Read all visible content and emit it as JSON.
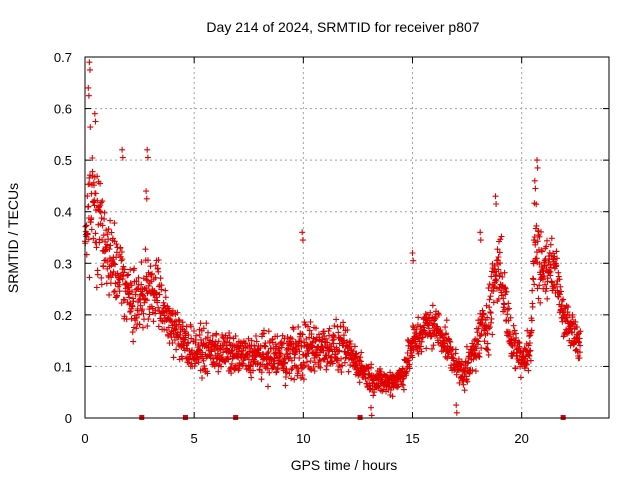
{
  "chart_data": {
    "type": "scatter",
    "title": "Day 214 of 2024, SRMTID for receiver p807",
    "xlabel": "GPS time / hours",
    "ylabel": "SRMTID / TECUs",
    "xlim": [
      0,
      24
    ],
    "ylim": [
      0,
      0.7
    ],
    "x_ticks": [
      0,
      5,
      10,
      15,
      20
    ],
    "x_tick_labels": [
      "0",
      "5",
      "10",
      "15",
      "20"
    ],
    "y_ticks": [
      0,
      0.1,
      0.2,
      0.3,
      0.4,
      0.5,
      0.6,
      0.7
    ],
    "y_tick_labels": [
      "0",
      "0.1",
      "0.2",
      "0.3",
      "0.4",
      "0.5",
      "0.6",
      "0.7"
    ],
    "grid": true,
    "marker": "+",
    "color": "#e00000",
    "gap_markers_x": [
      2.6,
      4.6,
      6.9,
      12.6,
      21.9
    ],
    "envelope": {
      "description_units": "hour, typical SRMTID level, scatter half-width",
      "x": [
        0.0,
        0.3,
        0.6,
        1.0,
        1.5,
        2.0,
        2.5,
        3.0,
        3.5,
        4.0,
        4.5,
        5.0,
        6.0,
        7.0,
        8.0,
        9.0,
        10.0,
        11.0,
        12.0,
        12.6,
        13.0,
        13.5,
        14.0,
        14.5,
        15.0,
        15.5,
        16.0,
        16.5,
        17.0,
        17.5,
        18.0,
        18.5,
        18.8,
        19.0,
        19.5,
        20.0,
        20.4,
        20.6,
        21.0,
        21.5,
        22.0,
        22.7
      ],
      "center": [
        0.35,
        0.42,
        0.38,
        0.32,
        0.28,
        0.24,
        0.22,
        0.26,
        0.22,
        0.18,
        0.15,
        0.13,
        0.13,
        0.12,
        0.12,
        0.12,
        0.13,
        0.14,
        0.13,
        0.1,
        0.08,
        0.07,
        0.07,
        0.08,
        0.14,
        0.17,
        0.18,
        0.15,
        0.1,
        0.09,
        0.15,
        0.2,
        0.28,
        0.3,
        0.15,
        0.12,
        0.13,
        0.35,
        0.28,
        0.3,
        0.18,
        0.15
      ],
      "spread": [
        0.14,
        0.2,
        0.16,
        0.12,
        0.11,
        0.1,
        0.09,
        0.12,
        0.08,
        0.07,
        0.06,
        0.06,
        0.06,
        0.05,
        0.06,
        0.07,
        0.08,
        0.07,
        0.06,
        0.04,
        0.04,
        0.035,
        0.035,
        0.04,
        0.06,
        0.06,
        0.06,
        0.05,
        0.04,
        0.05,
        0.07,
        0.09,
        0.12,
        0.1,
        0.07,
        0.05,
        0.07,
        0.14,
        0.09,
        0.06,
        0.06,
        0.06
      ]
    },
    "peaks": [
      {
        "x": 0.2,
        "y": 0.69
      },
      {
        "x": 0.15,
        "y": 0.64
      },
      {
        "x": 0.45,
        "y": 0.59
      },
      {
        "x": 1.7,
        "y": 0.52
      },
      {
        "x": 2.85,
        "y": 0.52
      },
      {
        "x": 2.8,
        "y": 0.44
      },
      {
        "x": 9.95,
        "y": 0.36
      },
      {
        "x": 15.0,
        "y": 0.32
      },
      {
        "x": 18.1,
        "y": 0.36
      },
      {
        "x": 18.8,
        "y": 0.43
      },
      {
        "x": 20.7,
        "y": 0.5
      },
      {
        "x": 20.6,
        "y": 0.46
      },
      {
        "x": 13.1,
        "y": 0.02
      },
      {
        "x": 17.0,
        "y": 0.025
      }
    ]
  }
}
